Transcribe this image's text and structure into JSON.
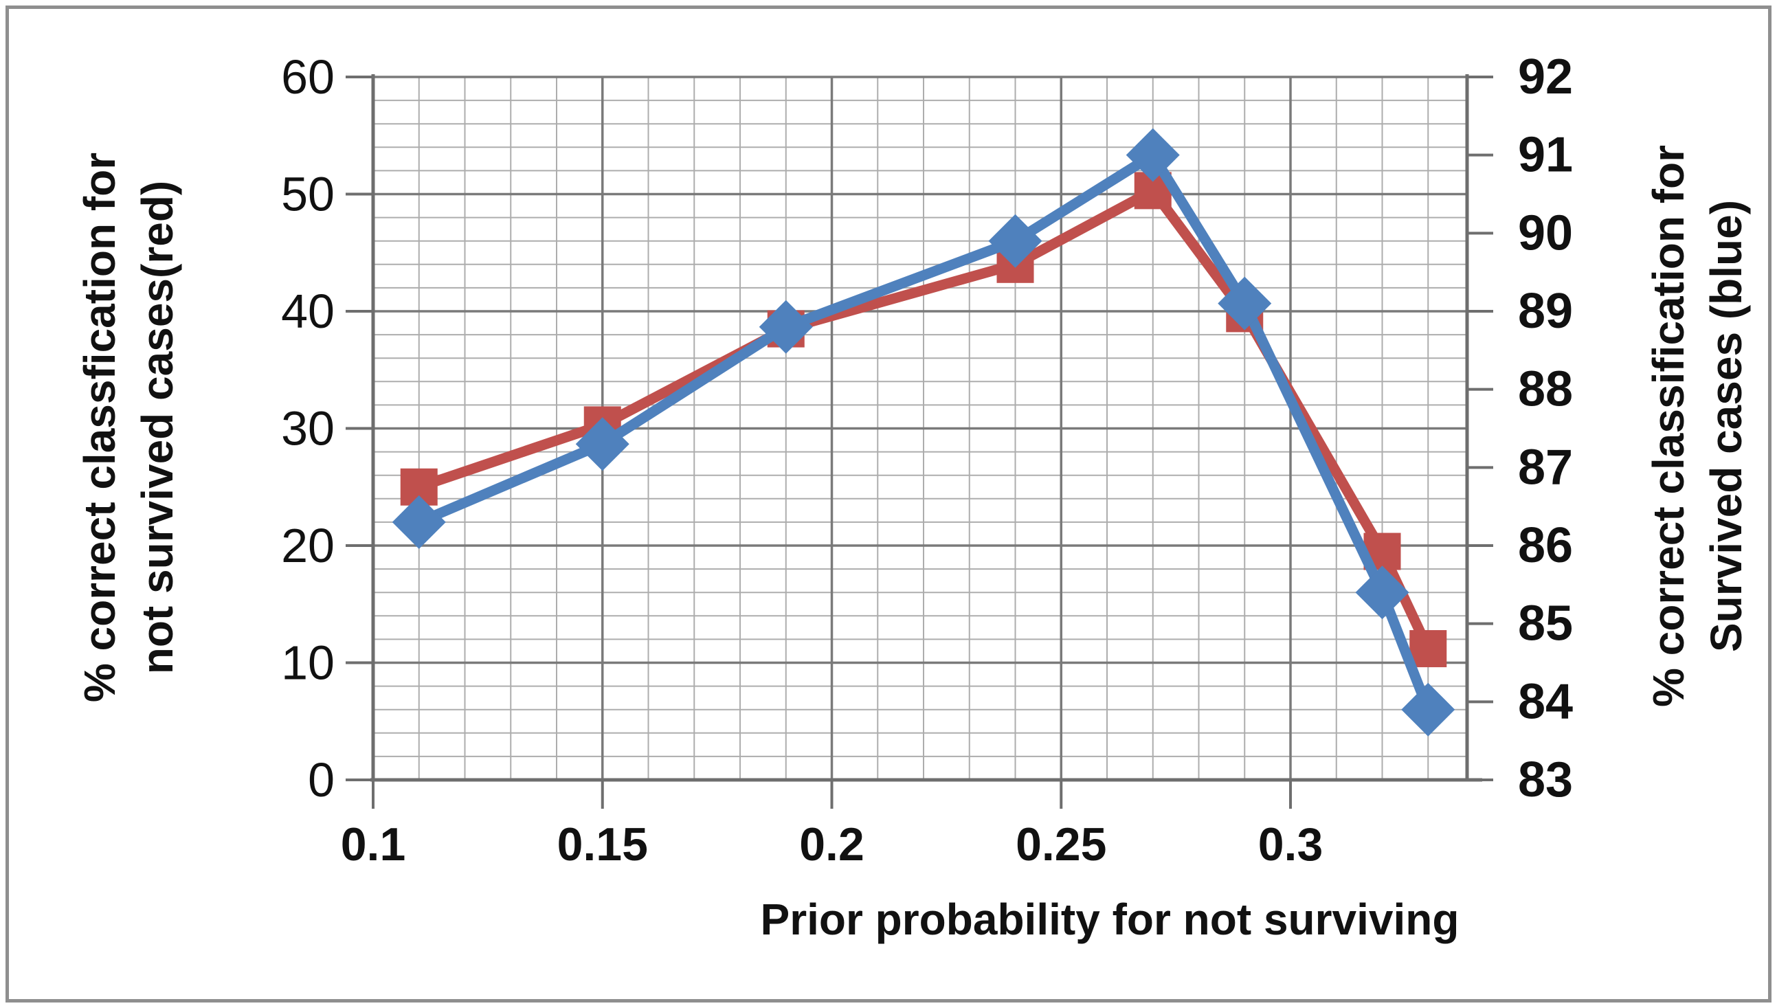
{
  "figure": {
    "background": "#ffffff",
    "frame_border_color": "#8f8f8f"
  },
  "chart_data": {
    "type": "line",
    "title": "",
    "x_axis": {
      "label": "Prior probability for not surviving",
      "min": 0.1,
      "max": 0.3385,
      "major_step": 0.05,
      "minor_step": 0.01,
      "ticks": [
        0.1,
        0.15,
        0.2,
        0.25,
        0.3
      ],
      "tick_labels": [
        "0.1",
        "0.15",
        "0.2",
        "0.25",
        "0.3"
      ]
    },
    "y_axis_left": {
      "label_lines": [
        "% correct classfication for",
        "not survived cases(red)"
      ],
      "min": 0,
      "max": 60,
      "major_step": 10,
      "minor_step": 2,
      "ticks": [
        0,
        10,
        20,
        30,
        40,
        50,
        60
      ],
      "tick_labels": [
        "0",
        "10",
        "20",
        "30",
        "40",
        "50",
        "60"
      ]
    },
    "y_axis_right": {
      "label_lines": [
        "% correct classification for",
        "Survived cases (blue)"
      ],
      "min": 83,
      "max": 92,
      "major_step": 1,
      "ticks": [
        83,
        84,
        85,
        86,
        87,
        88,
        89,
        90,
        91,
        92
      ],
      "tick_labels": [
        "83",
        "84",
        "85",
        "86",
        "87",
        "88",
        "89",
        "90",
        "91",
        "92"
      ]
    },
    "series": [
      {
        "name": "% correct classification, not survived cases",
        "axis": "left",
        "color": "#C0504D",
        "marker": "square",
        "x": [
          0.11,
          0.15,
          0.19,
          0.24,
          0.27,
          0.29,
          0.32,
          0.33
        ],
        "y": [
          25,
          30.3,
          38.5,
          44,
          50.3,
          39.8,
          19.5,
          11.2
        ]
      },
      {
        "name": "% correct classification, survived cases",
        "axis": "right",
        "color": "#4F81BD",
        "marker": "diamond",
        "x": [
          0.11,
          0.15,
          0.19,
          0.24,
          0.27,
          0.29,
          0.32,
          0.33
        ],
        "y": [
          86.3,
          87.3,
          88.8,
          89.9,
          91.0,
          89.1,
          85.4,
          83.9
        ]
      }
    ],
    "grid": {
      "major_color": "#7a7a7a",
      "minor_color": "#adadad",
      "axis_color": "#6e6e6e",
      "shown": true
    },
    "legend": "none (series identified in axis titles)"
  }
}
